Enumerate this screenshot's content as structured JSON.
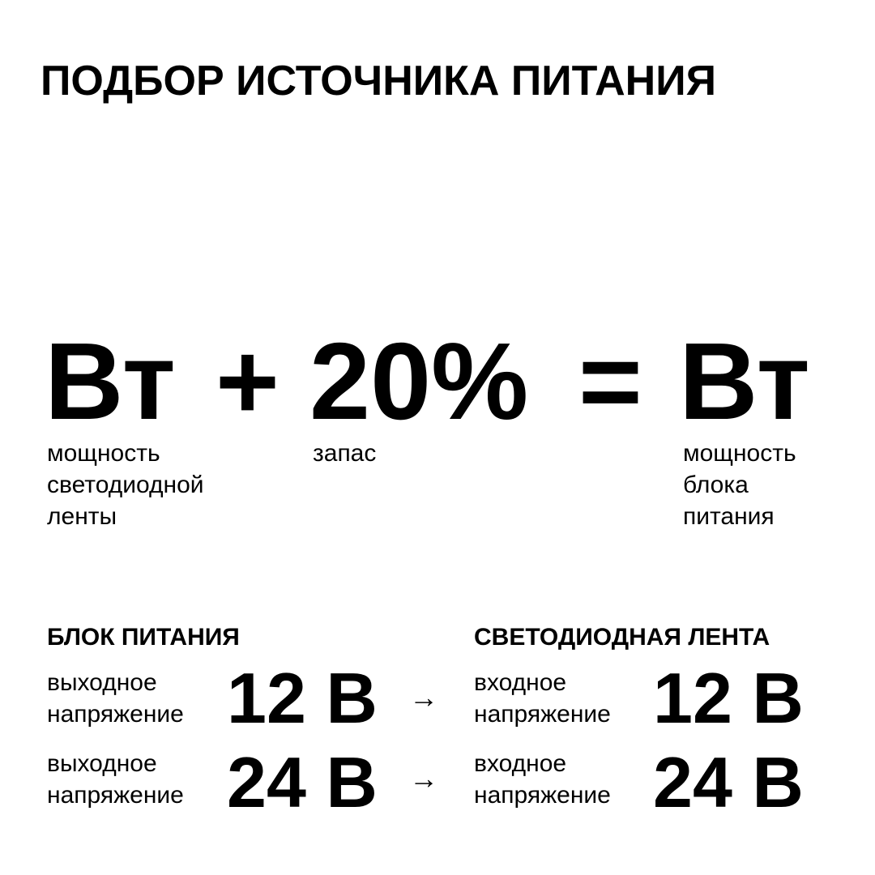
{
  "title": "ПОДБОР ИСТОЧНИКА ПИТАНИЯ",
  "formula": {
    "term1": "Вт",
    "plus": "+",
    "term2": "20%",
    "equals": "=",
    "result": "Вт",
    "term1_label": [
      "мощность",
      "светодиодной",
      "ленты"
    ],
    "term2_label": [
      "запас"
    ],
    "result_label": [
      "мощность",
      "блока",
      "питания"
    ]
  },
  "power_supply": {
    "heading": "БЛОК ПИТАНИЯ",
    "rows": [
      {
        "label": [
          "выходное",
          "напряжение"
        ],
        "value": "12 В"
      },
      {
        "label": [
          "выходное",
          "напряжение"
        ],
        "value": "24 В"
      }
    ]
  },
  "led_strip": {
    "heading": "СВЕТОДИОДНАЯ ЛЕНТА",
    "rows": [
      {
        "label": [
          "входное",
          "напряжение"
        ],
        "value": "12 В"
      },
      {
        "label": [
          "входное",
          "напряжение"
        ],
        "value": "24 В"
      }
    ]
  },
  "arrow": "→",
  "icons": {
    "arrow": "arrow-right-icon"
  }
}
